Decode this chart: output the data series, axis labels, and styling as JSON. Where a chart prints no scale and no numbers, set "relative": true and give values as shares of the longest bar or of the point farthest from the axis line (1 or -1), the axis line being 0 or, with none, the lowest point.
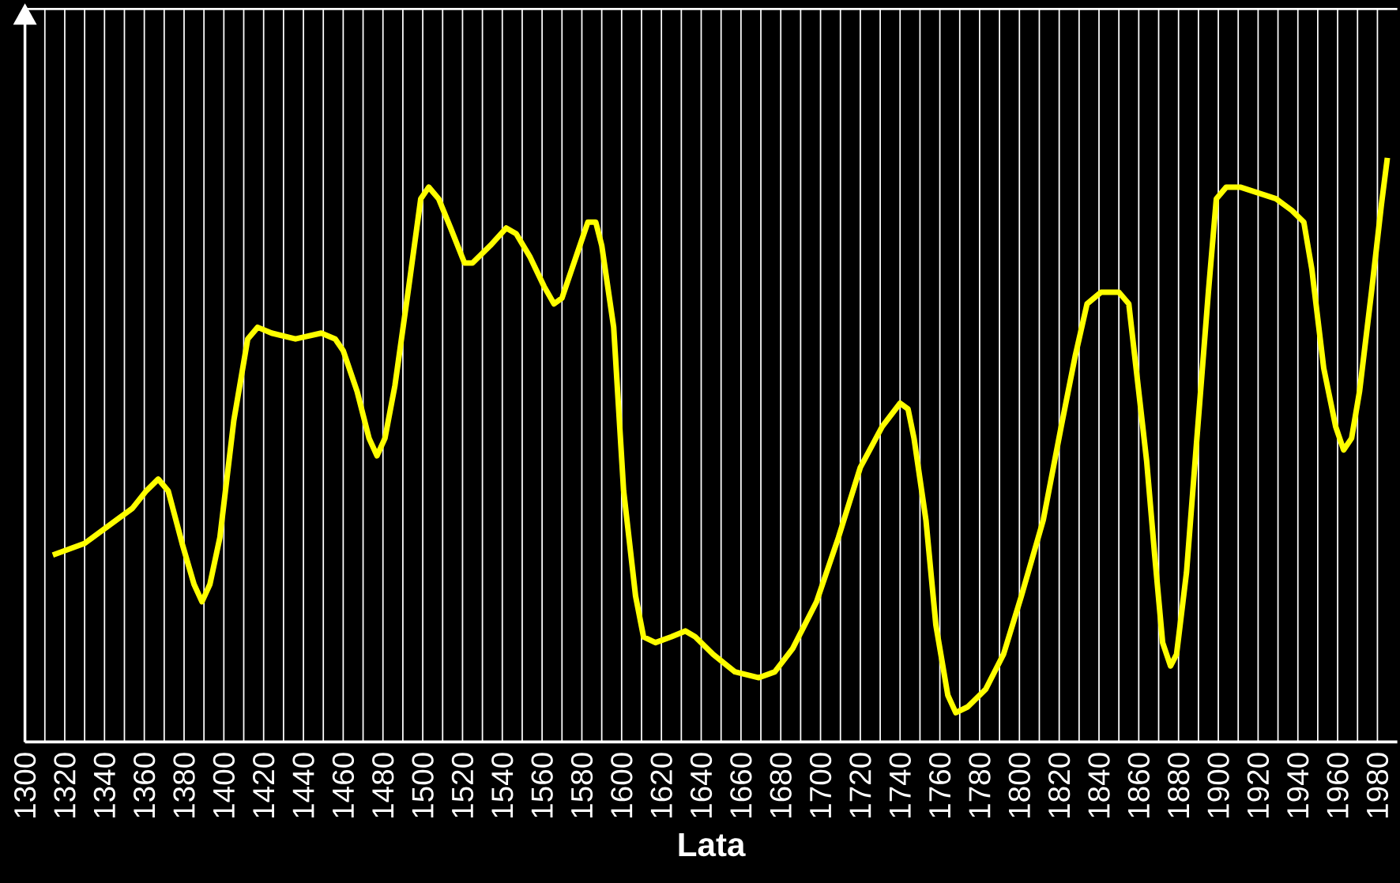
{
  "chart_data": {
    "type": "line",
    "xlabel": "Lata",
    "relative": true,
    "color": "#ffff00",
    "grid": "x",
    "marker": "none",
    "line_style": "solid",
    "xlim": [
      1300,
      1990
    ],
    "xticks": [
      1300,
      {
        "value": 1310,
        "label": null
      },
      1320,
      {
        "value": 1330,
        "label": null
      },
      1340,
      {
        "value": 1350,
        "label": null
      },
      1360,
      {
        "value": 1370,
        "label": null
      },
      1380,
      {
        "value": 1390,
        "label": null
      },
      1400,
      {
        "value": 1410,
        "label": null
      },
      1420,
      {
        "value": 1430,
        "label": null
      },
      1440,
      {
        "value": 1450,
        "label": null
      },
      1460,
      {
        "value": 1470,
        "label": null
      },
      1480,
      {
        "value": 1490,
        "label": null
      },
      1500,
      {
        "value": 1510,
        "label": null
      },
      1520,
      {
        "value": 1530,
        "label": null
      },
      1540,
      {
        "value": 1550,
        "label": null
      },
      1560,
      {
        "value": 1570,
        "label": null
      },
      1580,
      {
        "value": 1590,
        "label": null
      },
      1600,
      {
        "value": 1610,
        "label": null
      },
      1620,
      {
        "value": 1630,
        "label": null
      },
      1640,
      {
        "value": 1650,
        "label": null
      },
      1660,
      {
        "value": 1670,
        "label": null
      },
      1680,
      {
        "value": 1690,
        "label": null
      },
      1700,
      {
        "value": 1710,
        "label": null
      },
      1720,
      {
        "value": 1730,
        "label": null
      },
      1740,
      {
        "value": 1750,
        "label": null
      },
      1760,
      {
        "value": 1770,
        "label": null
      },
      1780,
      {
        "value": 1790,
        "label": null
      },
      1800,
      {
        "value": 1810,
        "label": null
      },
      1820,
      {
        "value": 1830,
        "label": null
      },
      1840,
      {
        "value": 1850,
        "label": null
      },
      1860,
      {
        "value": 1870,
        "label": null
      },
      1880,
      {
        "value": 1890,
        "label": null
      },
      1900,
      {
        "value": 1910,
        "label": null
      },
      1920,
      {
        "value": 1930,
        "label": null
      },
      1940,
      {
        "value": 1950,
        "label": null
      },
      1960,
      {
        "value": 1970,
        "label": null
      },
      1980
    ],
    "x": [
      1314,
      1330,
      1346,
      1354,
      1361,
      1367,
      1372,
      1379,
      1385,
      1389,
      1393,
      1398,
      1405,
      1412,
      1417,
      1424,
      1436,
      1449,
      1456,
      1460,
      1467,
      1473,
      1477,
      1481,
      1486,
      1493,
      1499,
      1503,
      1508,
      1514,
      1521,
      1525,
      1534,
      1542,
      1547,
      1554,
      1561,
      1566,
      1570,
      1578,
      1583,
      1587,
      1590,
      1596,
      1601,
      1607,
      1611,
      1617,
      1625,
      1632,
      1637,
      1646,
      1657,
      1669,
      1677,
      1686,
      1698,
      1709,
      1720,
      1731,
      1740,
      1744,
      1747,
      1753,
      1758,
      1764,
      1768,
      1774,
      1783,
      1792,
      1801,
      1812,
      1821,
      1828,
      1834,
      1841,
      1850,
      1855,
      1859,
      1864,
      1868,
      1872,
      1876,
      1879,
      1884,
      1889,
      1895,
      1899,
      1904,
      1911,
      1920,
      1929,
      1937,
      1943,
      1947,
      1953,
      1959,
      1963,
      1967,
      1971,
      1977,
      1982,
      1985
    ],
    "values": [
      0.32,
      0.34,
      0.38,
      0.4,
      0.43,
      0.45,
      0.43,
      0.34,
      0.27,
      0.24,
      0.27,
      0.35,
      0.55,
      0.69,
      0.71,
      0.7,
      0.69,
      0.7,
      0.69,
      0.67,
      0.6,
      0.52,
      0.49,
      0.52,
      0.61,
      0.78,
      0.93,
      0.95,
      0.93,
      0.88,
      0.82,
      0.82,
      0.85,
      0.88,
      0.87,
      0.83,
      0.78,
      0.75,
      0.76,
      0.84,
      0.89,
      0.89,
      0.85,
      0.71,
      0.43,
      0.25,
      0.18,
      0.17,
      0.18,
      0.19,
      0.18,
      0.15,
      0.12,
      0.11,
      0.12,
      0.16,
      0.24,
      0.35,
      0.47,
      0.54,
      0.58,
      0.57,
      0.52,
      0.38,
      0.2,
      0.08,
      0.05,
      0.06,
      0.09,
      0.15,
      0.25,
      0.38,
      0.54,
      0.66,
      0.75,
      0.77,
      0.77,
      0.75,
      0.63,
      0.48,
      0.32,
      0.17,
      0.13,
      0.15,
      0.29,
      0.51,
      0.77,
      0.93,
      0.95,
      0.95,
      0.94,
      0.93,
      0.91,
      0.89,
      0.81,
      0.64,
      0.54,
      0.5,
      0.52,
      0.6,
      0.77,
      0.92,
      1
    ]
  }
}
